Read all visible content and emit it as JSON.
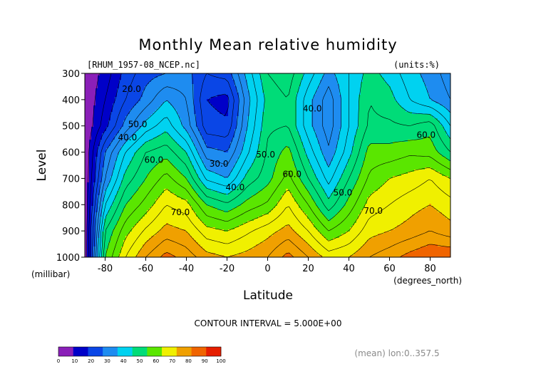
{
  "chart_data": {
    "type": "contour",
    "title": "Monthly Mean relative humidity",
    "source_file": "[RHUM_1957-08_NCEP.nc]",
    "units": "(units:%)",
    "xlabel": "Latitude",
    "x_units": "(degrees_north)",
    "ylabel": "Level",
    "y_units": "(millibar)",
    "xlim": [
      -90,
      90
    ],
    "ylim": [
      1000,
      300
    ],
    "x_ticks": [
      -80,
      -60,
      -40,
      -20,
      0,
      20,
      40,
      60,
      80
    ],
    "x_tick_labels": [
      "-80",
      "-60",
      "-40",
      "-20",
      "0",
      "20",
      "40",
      "60",
      "80"
    ],
    "y_ticks": [
      300,
      400,
      500,
      600,
      700,
      800,
      900,
      1000
    ],
    "y_tick_labels": [
      "300",
      "400",
      "500",
      "600",
      "700",
      "800",
      "900",
      "1000"
    ],
    "contour_interval_text": "CONTOUR INTERVAL = 5.000E+00",
    "contour_labels": [
      {
        "text": "20.0",
        "lat": -67,
        "level": 370
      },
      {
        "text": "40.0",
        "lat": -69,
        "level": 555
      },
      {
        "text": "50.0",
        "lat": -64,
        "level": 505
      },
      {
        "text": "60.0",
        "lat": -56,
        "level": 640
      },
      {
        "text": "30.0",
        "lat": -24,
        "level": 655
      },
      {
        "text": "40.0",
        "lat": -16,
        "level": 745
      },
      {
        "text": "50.0",
        "lat": -1,
        "level": 620
      },
      {
        "text": "60.0",
        "lat": 12,
        "level": 695
      },
      {
        "text": "40.0",
        "lat": 22,
        "level": 445
      },
      {
        "text": "50.0",
        "lat": 37,
        "level": 765
      },
      {
        "text": "70.0",
        "lat": -43,
        "level": 840
      },
      {
        "text": "70.0",
        "lat": 52,
        "level": 835
      },
      {
        "text": "60.0",
        "lat": 78,
        "level": 545
      }
    ],
    "fields": {
      "lat": [
        -90,
        -80,
        -70,
        -60,
        -50,
        -40,
        -30,
        -20,
        -10,
        0,
        10,
        20,
        30,
        40,
        50,
        60,
        70,
        80,
        90
      ],
      "levels": [
        300,
        400,
        500,
        600,
        700,
        800,
        900,
        1000
      ],
      "values": [
        [
          5,
          12,
          22,
          28,
          30,
          32,
          25,
          27,
          42,
          55,
          58,
          48,
          38,
          45,
          52,
          48,
          42,
          38,
          32
        ],
        [
          5,
          15,
          25,
          32,
          40,
          35,
          20,
          18,
          38,
          52,
          55,
          42,
          32,
          45,
          55,
          52,
          45,
          40,
          35
        ],
        [
          5,
          18,
          32,
          42,
          48,
          38,
          22,
          21,
          40,
          54,
          55,
          42,
          32,
          45,
          56,
          56,
          55,
          58,
          45
        ],
        [
          5,
          30,
          45,
          55,
          58,
          50,
          32,
          30,
          44,
          56,
          62,
          48,
          36,
          48,
          62,
          62,
          64,
          63,
          55
        ],
        [
          5,
          35,
          52,
          60,
          67,
          60,
          44,
          40,
          52,
          58,
          67,
          55,
          43,
          55,
          66,
          70,
          72,
          75,
          70
        ],
        [
          5,
          45,
          60,
          67,
          75,
          72,
          60,
          56,
          62,
          66,
          75,
          65,
          52,
          62,
          72,
          75,
          78,
          80,
          77
        ],
        [
          5,
          55,
          68,
          76,
          82,
          80,
          72,
          70,
          74,
          78,
          82,
          75,
          65,
          70,
          78,
          80,
          82,
          85,
          82
        ],
        [
          5,
          60,
          75,
          85,
          92,
          88,
          82,
          80,
          82,
          85,
          92,
          85,
          78,
          80,
          85,
          88,
          92,
          95,
          95
        ]
      ]
    },
    "colorbar": {
      "bounds": [
        0,
        10,
        20,
        30,
        40,
        50,
        60,
        70,
        80,
        90,
        100
      ],
      "tick_labels": [
        "0",
        "10",
        "20",
        "30",
        "40",
        "50",
        "60",
        "70",
        "80",
        "90",
        "100"
      ],
      "colors": [
        "#8a1fb8",
        "#0000c8",
        "#0a46e6",
        "#1e8cf0",
        "#00d2f0",
        "#00dc78",
        "#5ae600",
        "#f0f000",
        "#f0a000",
        "#f06400",
        "#e61e00"
      ]
    }
  },
  "footer": {
    "mean_note": "(mean) lon:0..357.5"
  }
}
